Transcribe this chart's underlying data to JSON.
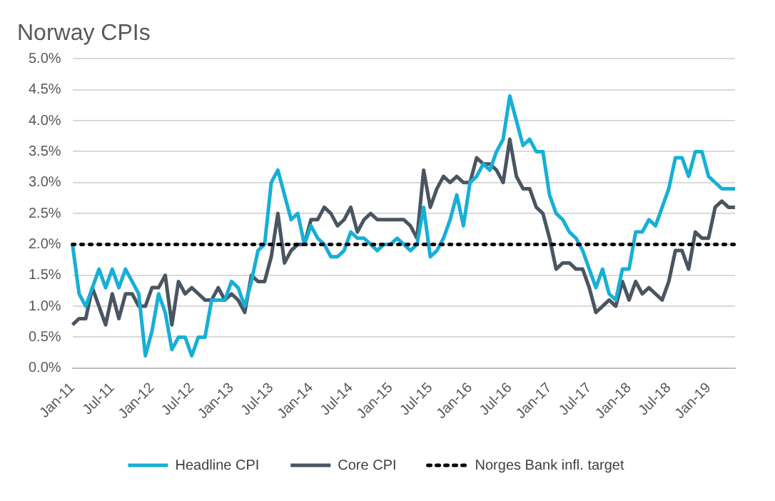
{
  "chart_data": {
    "type": "line",
    "title": "Norway CPIs",
    "categories": [
      "Jan-11",
      null,
      null,
      null,
      null,
      null,
      "Jul-11",
      null,
      null,
      null,
      null,
      null,
      "Jan-12",
      null,
      null,
      null,
      null,
      null,
      "Jul-12",
      null,
      null,
      null,
      null,
      null,
      "Jan-13",
      null,
      null,
      null,
      null,
      null,
      "Jul-13",
      null,
      null,
      null,
      null,
      null,
      "Jan-14",
      null,
      null,
      null,
      null,
      null,
      "Jul-14",
      null,
      null,
      null,
      null,
      null,
      "Jan-15",
      null,
      null,
      null,
      null,
      null,
      "Jul-15",
      null,
      null,
      null,
      null,
      null,
      "Jan-16",
      null,
      null,
      null,
      null,
      null,
      "Jul-16",
      null,
      null,
      null,
      null,
      null,
      "Jan-17",
      null,
      null,
      null,
      null,
      null,
      "Jul-17",
      null,
      null,
      null,
      null,
      null,
      "Jan-18",
      null,
      null,
      null,
      null,
      null,
      "Jul-18",
      null,
      null,
      null,
      null,
      null,
      "Jan-19",
      null,
      null,
      null,
      null
    ],
    "series": [
      {
        "name": "Headline CPI",
        "color": "#17afd6",
        "values": [
          2.0,
          1.2,
          1.0,
          1.3,
          1.6,
          1.3,
          1.6,
          1.3,
          1.6,
          1.4,
          1.2,
          0.2,
          0.6,
          1.2,
          0.9,
          0.3,
          0.5,
          0.5,
          0.2,
          0.5,
          0.5,
          1.1,
          1.1,
          1.1,
          1.4,
          1.3,
          1.0,
          1.4,
          1.9,
          2.0,
          3.0,
          3.2,
          2.8,
          2.4,
          2.5,
          2.0,
          2.3,
          2.1,
          2.0,
          1.8,
          1.8,
          1.9,
          2.2,
          2.1,
          2.1,
          2.0,
          1.9,
          2.0,
          2.0,
          2.1,
          2.0,
          1.9,
          2.0,
          2.6,
          1.8,
          1.9,
          2.1,
          2.4,
          2.8,
          2.3,
          3.0,
          3.1,
          3.3,
          3.2,
          3.5,
          3.7,
          4.4,
          4.0,
          3.6,
          3.7,
          3.5,
          3.5,
          2.8,
          2.5,
          2.4,
          2.2,
          2.1,
          1.9,
          1.6,
          1.3,
          1.6,
          1.2,
          1.1,
          1.6,
          1.6,
          2.2,
          2.2,
          2.4,
          2.3,
          2.6,
          2.9,
          3.4,
          3.4,
          3.1,
          3.5,
          3.5,
          3.1,
          3.0,
          2.9,
          2.9,
          2.9
        ]
      },
      {
        "name": "Core CPI",
        "color": "#4a5561",
        "values": [
          0.7,
          0.8,
          0.8,
          1.3,
          1.0,
          0.7,
          1.2,
          0.8,
          1.2,
          1.2,
          1.0,
          1.0,
          1.3,
          1.3,
          1.5,
          0.7,
          1.4,
          1.2,
          1.3,
          1.2,
          1.1,
          1.1,
          1.3,
          1.1,
          1.2,
          1.1,
          0.9,
          1.5,
          1.4,
          1.4,
          1.8,
          2.5,
          1.7,
          1.9,
          2.0,
          2.0,
          2.4,
          2.4,
          2.6,
          2.5,
          2.3,
          2.4,
          2.6,
          2.2,
          2.4,
          2.5,
          2.4,
          2.4,
          2.4,
          2.4,
          2.4,
          2.3,
          2.1,
          3.2,
          2.6,
          2.9,
          3.1,
          3.0,
          3.1,
          3.0,
          3.0,
          3.4,
          3.3,
          3.3,
          3.2,
          3.0,
          3.7,
          3.1,
          2.9,
          2.9,
          2.6,
          2.5,
          2.1,
          1.6,
          1.7,
          1.7,
          1.6,
          1.6,
          1.3,
          0.9,
          1.0,
          1.1,
          1.0,
          1.4,
          1.1,
          1.4,
          1.2,
          1.3,
          1.2,
          1.1,
          1.4,
          1.9,
          1.9,
          1.6,
          2.2,
          2.1,
          2.1,
          2.6,
          2.7,
          2.6,
          2.6
        ]
      }
    ],
    "ref_lines": [
      {
        "axis": "y",
        "value": 2.0,
        "label": "Norges Bank infl. target",
        "color": "#000000",
        "line_style": "dotted"
      }
    ],
    "ylim": [
      0,
      5
    ],
    "yticks": [
      {
        "value": 0,
        "label": "0.0%"
      },
      {
        "value": 0.5,
        "label": "0.5%"
      },
      {
        "value": 1,
        "label": "1.0%"
      },
      {
        "value": 1.5,
        "label": "1.5%"
      },
      {
        "value": 2,
        "label": "2.0%"
      },
      {
        "value": 2.5,
        "label": "2.5%"
      },
      {
        "value": 3,
        "label": "3.0%"
      },
      {
        "value": 3.5,
        "label": "3.5%"
      },
      {
        "value": 4,
        "label": "4.0%"
      },
      {
        "value": 4.5,
        "label": "4.5%"
      },
      {
        "value": 5,
        "label": "5.0%"
      }
    ],
    "grid": "y",
    "legend": "bottom",
    "marker": "none",
    "line_style": "solid"
  }
}
